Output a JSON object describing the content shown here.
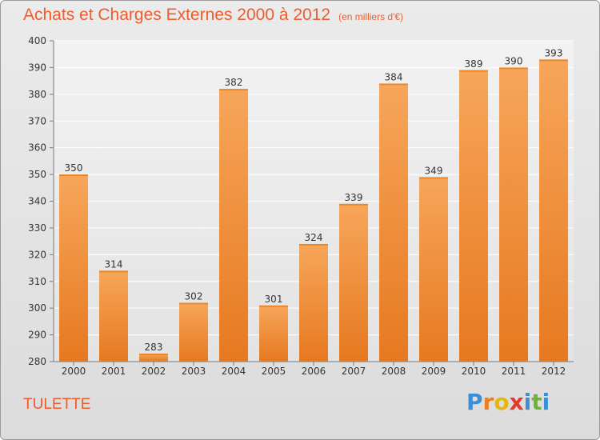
{
  "header": {
    "title": "Achats et Charges Externes 2000 à 2012",
    "subtitle": "(en milliers d'€)"
  },
  "footer": {
    "town": "TULETTE",
    "logo_letters": [
      "P",
      "r",
      "o",
      "x",
      "i",
      "t",
      "i"
    ],
    "logo_colors": [
      "#3b8fd6",
      "#ee7d1e",
      "#e8b40e",
      "#e23a2e",
      "#3b8fd6",
      "#6bb533",
      "#3b8fd6"
    ]
  },
  "chart_data": {
    "type": "bar",
    "categories": [
      "2000",
      "2001",
      "2002",
      "2003",
      "2004",
      "2005",
      "2006",
      "2007",
      "2008",
      "2009",
      "2010",
      "2011",
      "2012"
    ],
    "values": [
      350,
      314,
      283,
      302,
      382,
      301,
      324,
      339,
      384,
      349,
      389,
      390,
      393
    ],
    "ylim": [
      280,
      400
    ],
    "yticks": [
      280,
      290,
      300,
      310,
      320,
      330,
      340,
      350,
      360,
      370,
      380,
      390,
      400
    ],
    "grid": true,
    "colors": {
      "bar_top": "#f7a65a",
      "bar_bottom": "#e67920",
      "grid": "#ffffff",
      "axis": "#7a7a7a",
      "text": "#333333"
    }
  }
}
